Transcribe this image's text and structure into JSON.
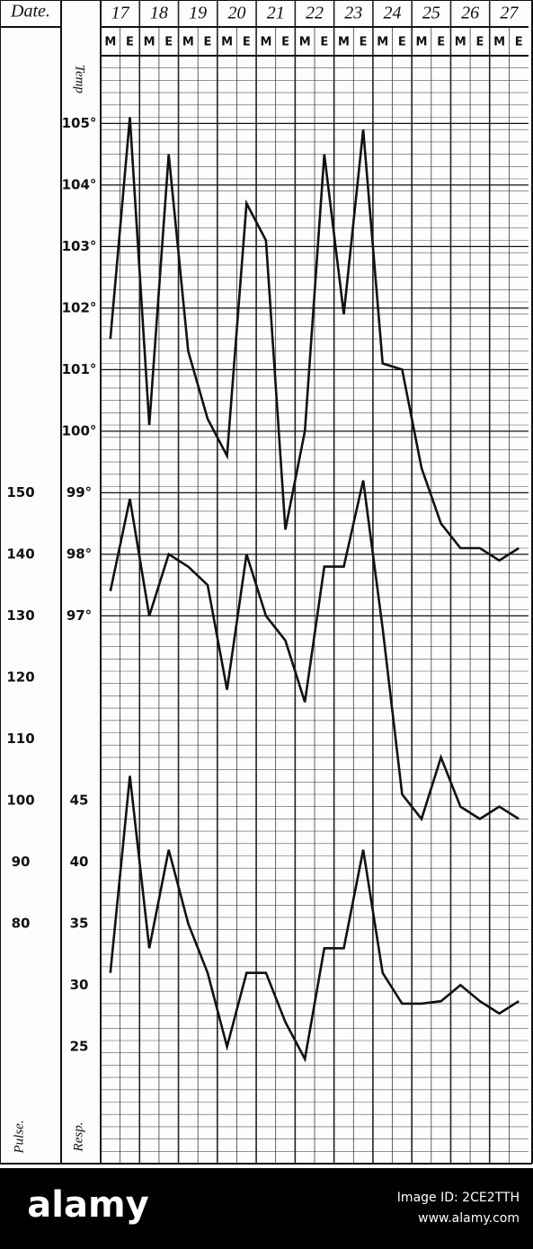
{
  "chart_data": {
    "type": "line",
    "x_label": "Date.",
    "dates": [
      "17",
      "18",
      "19",
      "20",
      "21",
      "22",
      "23",
      "24",
      "25",
      "26",
      "27"
    ],
    "categories": [
      "M",
      "E",
      "M",
      "E",
      "M",
      "E",
      "M",
      "E",
      "M",
      "E",
      "M",
      "E",
      "M",
      "E",
      "M",
      "E",
      "M",
      "E",
      "M",
      "E",
      "M",
      "E"
    ],
    "y_label": "Temp",
    "y2_label": "Pulse.",
    "y3_label": "Resp.",
    "ylim": [
      88.1,
      106.1
    ],
    "yticks": [
      {
        "value": 97,
        "label": "97°"
      },
      {
        "value": 98,
        "label": "98°"
      },
      {
        "value": 99,
        "label": "99°"
      },
      {
        "value": 100,
        "label": "100°"
      },
      {
        "value": 101,
        "label": "101°"
      },
      {
        "value": 102,
        "label": "102°"
      },
      {
        "value": 103,
        "label": "103°"
      },
      {
        "value": 104,
        "label": "104°"
      },
      {
        "value": 105,
        "label": "105°"
      }
    ],
    "y2lim": [
      41,
      221
    ],
    "y2ticks": [
      80,
      90,
      100,
      110,
      120,
      130,
      140,
      150
    ],
    "y3lim": [
      15.5,
      105.5
    ],
    "y3ticks": [
      25,
      30,
      35,
      40,
      45
    ],
    "grid": true,
    "series": [
      {
        "name": "Temp",
        "color": "#111111",
        "axis": "y",
        "values": [
          101.5,
          105.1,
          100.1,
          104.5,
          101.3,
          100.2,
          99.6,
          103.7,
          103.1,
          98.4,
          100.0,
          104.5,
          101.9,
          104.9,
          101.1,
          101.0,
          99.4,
          98.5,
          98.1,
          98.1,
          97.9,
          98.1
        ]
      },
      {
        "name": "Pulse.",
        "color": "#111111",
        "axis": "y2",
        "values": [
          134,
          149,
          130,
          140,
          138,
          135,
          118,
          140,
          130,
          126,
          116,
          138,
          138,
          152,
          128,
          101,
          97,
          107,
          99,
          97,
          99,
          97
        ]
      },
      {
        "name": "Resp.",
        "color": "#111111",
        "axis": "y3",
        "values": [
          31,
          47,
          33,
          41,
          35,
          31,
          25,
          31,
          31,
          27,
          24,
          33,
          33,
          41,
          31,
          28.5,
          28.5,
          28.7,
          30,
          28.7,
          27.7,
          28.7
        ]
      }
    ]
  },
  "watermark": {
    "brand": "alamy",
    "image_id": "Image ID: 2CE2TTH",
    "url": "www.alamy.com"
  }
}
